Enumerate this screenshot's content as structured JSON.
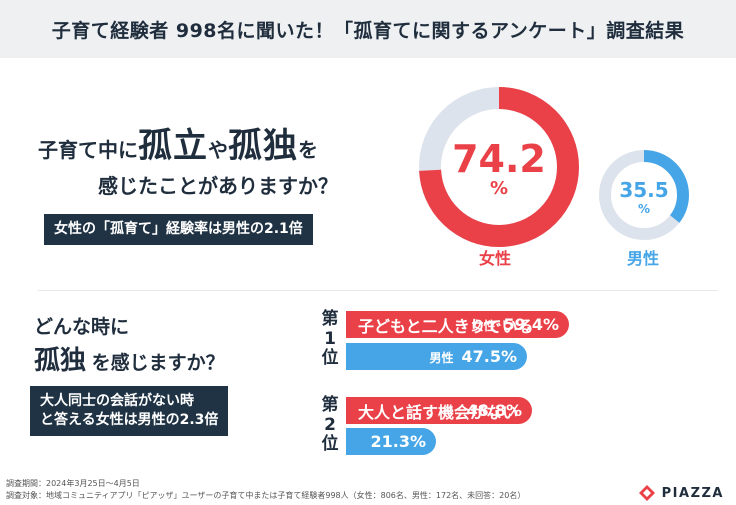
{
  "header": {
    "title": "子育て経験者 998名に聞いた！「孤育てに関するアンケート」調査結果"
  },
  "question1": {
    "part1": "子育て中に",
    "part2": "孤立",
    "part3": "や",
    "part4": "孤独",
    "part5": "を",
    "line2": "感じたことがありますか？",
    "callout": "女性の「孤育て」経験率は男性の2.1倍"
  },
  "question2": {
    "line1": "どんな時に",
    "line2_big": "孤独",
    "line2_rest": "を感じますか？",
    "callout_line1": "大人同士の会話がない時",
    "callout_line2": "と答える女性は男性の2.3倍"
  },
  "ranks": {
    "first": "第1位",
    "second": "第2位"
  },
  "chart_data": [
    {
      "type": "pie",
      "title": "子育て中に孤立や孤独を感じたことがありますか？",
      "series": [
        {
          "name": "女性",
          "value": 74.2,
          "unit": "%"
        },
        {
          "name": "男性",
          "value": 35.5,
          "unit": "%"
        }
      ]
    },
    {
      "type": "bar",
      "title": "どんな時に孤独を感じますか？",
      "categories": [
        "子どもと二人きりでいる",
        "大人と話す機会がない"
      ],
      "series": [
        {
          "name": "女性",
          "values": [
            59.4,
            48.8
          ]
        },
        {
          "name": "男性",
          "values": [
            47.5,
            21.3
          ]
        }
      ],
      "unit": "%",
      "ylim": [
        0,
        100
      ]
    }
  ],
  "labels": {
    "female_value": "74.2",
    "male_value": "35.5",
    "percent": "%",
    "female": "女性",
    "male": "男性",
    "bar1_text": "子どもと二人きりでいる",
    "bar1_gender": "女性",
    "bar1_value": "59.4%",
    "bar2_gender": "男性",
    "bar2_value": "47.5%",
    "bar3_text": "大人と話す機会がない",
    "bar3_value": "48.8%",
    "bar4_value": "21.3%"
  },
  "footer": {
    "period": "調査期間：2024年3月25日～4月5日",
    "target": "調査対象：地域コミュニティアプリ「ピアッザ」ユーザーの子育て中または子育て経験者998人（女性：806名、男性：172名、未回答：20名）",
    "logo": "PIAZZA"
  },
  "colors": {
    "female": "#ea4148",
    "male": "#46a5e6",
    "track": "#dde3ec",
    "dark": "#1f3344"
  }
}
